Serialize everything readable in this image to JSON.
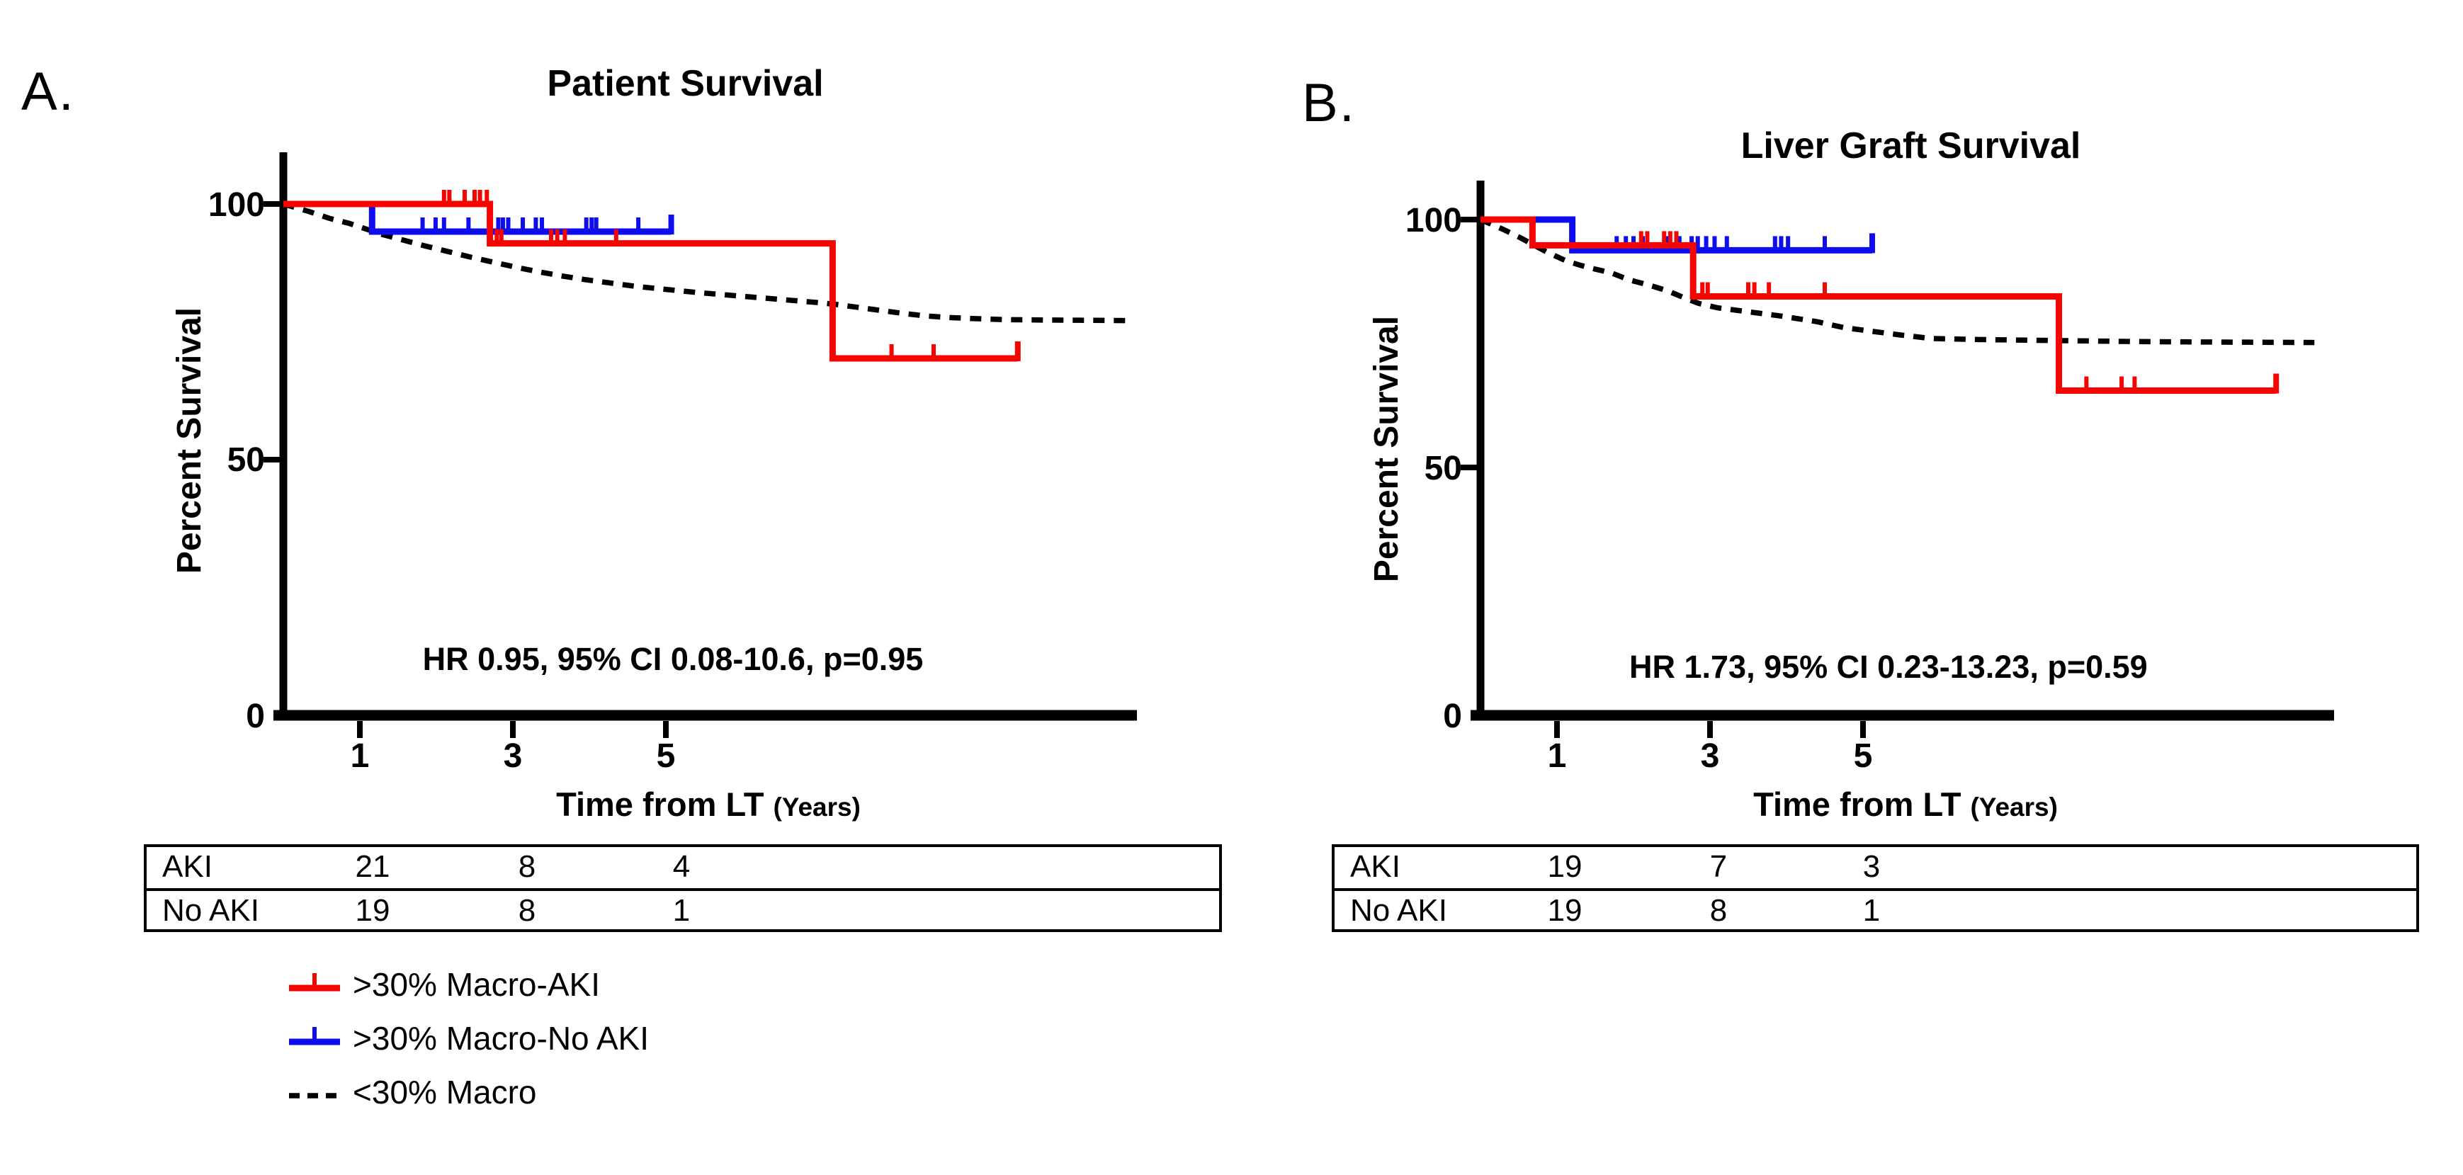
{
  "figure": {
    "background": "#ffffff"
  },
  "panel_labels": [
    "A.",
    "B."
  ],
  "colors": {
    "aki": "#f50400",
    "no_aki": "#0d0dee",
    "macro": "#000000"
  },
  "axis": {
    "y_label": "Percent Survival",
    "x_label_main": "Time from LT",
    "x_label_unit": "(Years)",
    "x_tick_labels": [
      "1",
      "3",
      "5"
    ],
    "y_tick_labels": [
      "0",
      "50",
      "100"
    ]
  },
  "legend": {
    "items": [
      {
        "label": ">30% Macro-AKI",
        "color": "#f50400",
        "style": "solid-tick"
      },
      {
        "label": ">30% Macro-No AKI",
        "color": "#0d0dee",
        "style": "solid-tick"
      },
      {
        "label": "<30% Macro",
        "color": "#000000",
        "style": "dashed"
      }
    ]
  },
  "chart_data": [
    {
      "type": "km_step",
      "title": "Patient Survival",
      "xlabel": "Time from LT (Years)",
      "ylabel": "Percent Survival",
      "annotation": "HR 0.95, 95% CI 0.08-10.6, p=0.95",
      "xlim": [
        0,
        11.2
      ],
      "ylim": [
        0,
        110
      ],
      "x_ticks": [
        1,
        3,
        5
      ],
      "y_ticks": [
        0,
        50,
        100
      ],
      "grid": false,
      "series": [
        {
          "name": "<30% Macro",
          "color_key": "macro",
          "style": "dashed",
          "points": [
            [
              0,
              100
            ],
            [
              0.34,
              98.5
            ],
            [
              0.6,
              97.2
            ],
            [
              0.86,
              96.2
            ],
            [
              1.14,
              94.8
            ],
            [
              1.3,
              94
            ],
            [
              1.55,
              93
            ],
            [
              1.85,
              91.8
            ],
            [
              2.15,
              90.7
            ],
            [
              2.45,
              89.6
            ],
            [
              2.75,
              88.6
            ],
            [
              3.05,
              87.6
            ],
            [
              3.35,
              86.7
            ],
            [
              3.65,
              85.9
            ],
            [
              3.95,
              85.2
            ],
            [
              4.25,
              84.6
            ],
            [
              4.6,
              83.9
            ],
            [
              5,
              83.3
            ],
            [
              5.4,
              82.7
            ],
            [
              5.8,
              82.2
            ],
            [
              6.2,
              81.7
            ],
            [
              6.6,
              81.2
            ],
            [
              7,
              80.7
            ],
            [
              7.2,
              80.4
            ],
            [
              7.5,
              79.8
            ],
            [
              7.8,
              79.2
            ],
            [
              8.1,
              78.6
            ],
            [
              8.4,
              78.1
            ],
            [
              8.7,
              77.8
            ],
            [
              9,
              77.6
            ],
            [
              9.4,
              77.4
            ],
            [
              10,
              77.3
            ],
            [
              11.05,
              77.2
            ]
          ],
          "censor_ticks": [],
          "terminal_tick": null
        },
        {
          "name": ">30% Macro-No AKI",
          "color_key": "no_aki",
          "style": "solid",
          "points": [
            [
              0,
              100
            ],
            [
              1.16,
              100
            ],
            [
              1.16,
              94.6
            ],
            [
              5.07,
              94.6
            ]
          ],
          "censor_ticks": [
            [
              1.82,
              94.6
            ],
            [
              1.99,
              94.6
            ],
            [
              2.1,
              94.6
            ],
            [
              2.42,
              94.6
            ],
            [
              2.7,
              94.6
            ],
            [
              2.81,
              94.6
            ],
            [
              2.87,
              94.6
            ],
            [
              2.94,
              94.6
            ],
            [
              3.13,
              94.6
            ],
            [
              3.3,
              94.6
            ],
            [
              3.38,
              94.6
            ],
            [
              3.96,
              94.6
            ],
            [
              4.03,
              94.6
            ],
            [
              4.09,
              94.6
            ],
            [
              4.64,
              94.6
            ]
          ],
          "terminal_tick": [
            5.07,
            94.6
          ]
        },
        {
          "name": ">30% Macro-AKI",
          "color_key": "aki",
          "style": "solid",
          "points": [
            [
              0,
              100
            ],
            [
              2.7,
              100
            ],
            [
              2.7,
              92.3
            ],
            [
              7.18,
              92.3
            ],
            [
              7.18,
              69.8
            ],
            [
              9.6,
              69.8
            ]
          ],
          "censor_ticks": [
            [
              2.1,
              100
            ],
            [
              2.17,
              100
            ],
            [
              2.37,
              100
            ],
            [
              2.5,
              100
            ],
            [
              2.57,
              100
            ],
            [
              2.66,
              100
            ],
            [
              2.79,
              92.3
            ],
            [
              2.85,
              92.3
            ],
            [
              3.5,
              92.3
            ],
            [
              3.58,
              92.3
            ],
            [
              3.68,
              92.3
            ],
            [
              4.35,
              92.3
            ],
            [
              7.95,
              69.8
            ],
            [
              8.5,
              69.8
            ]
          ],
          "terminal_tick": [
            9.6,
            69.8
          ]
        }
      ],
      "at_risk": {
        "time_points": [
          1,
          3,
          5
        ],
        "rows": [
          [
            "AKI",
            21,
            8,
            4
          ],
          [
            "No AKI",
            19,
            8,
            1
          ]
        ]
      }
    },
    {
      "type": "km_step",
      "title": "Liver Graft Survival",
      "xlabel": "Time from LT (Years)",
      "ylabel": "Percent Survival",
      "annotation": "HR 1.73, 95% CI 0.23-13.23, p=0.59",
      "xlim": [
        0,
        11.2
      ],
      "ylim": [
        0,
        110
      ],
      "x_ticks": [
        1,
        3,
        5
      ],
      "y_ticks": [
        0,
        50,
        100
      ],
      "grid": false,
      "series": [
        {
          "name": "<30% Macro",
          "color_key": "macro",
          "style": "dashed",
          "points": [
            [
              0,
              100
            ],
            [
              0.3,
              98
            ],
            [
              0.5,
              96.5
            ],
            [
              0.86,
              93.5
            ],
            [
              1.1,
              91.8
            ],
            [
              1.3,
              90.8
            ],
            [
              1.5,
              90
            ],
            [
              1.7,
              89.3
            ],
            [
              1.95,
              87.8
            ],
            [
              2.2,
              86.8
            ],
            [
              2.45,
              85.6
            ],
            [
              2.65,
              84.3
            ],
            [
              2.85,
              83.1
            ],
            [
              3.1,
              82.2
            ],
            [
              3.35,
              81.7
            ],
            [
              3.6,
              81.2
            ],
            [
              3.9,
              80.6
            ],
            [
              4.15,
              80
            ],
            [
              4.4,
              79.4
            ],
            [
              4.75,
              78.2
            ],
            [
              5.05,
              77.6
            ],
            [
              5.5,
              76.7
            ],
            [
              5.9,
              76
            ],
            [
              6.5,
              75.8
            ],
            [
              7.5,
              75.6
            ],
            [
              8.5,
              75.4
            ],
            [
              9.5,
              75.3
            ],
            [
              10.9,
              75.2
            ]
          ],
          "censor_ticks": [],
          "terminal_tick": null
        },
        {
          "name": ">30% Macro-No AKI",
          "color_key": "no_aki",
          "style": "solid",
          "points": [
            [
              0,
              100
            ],
            [
              1.2,
              100
            ],
            [
              1.2,
              93.8
            ],
            [
              5.12,
              93.8
            ]
          ],
          "censor_ticks": [
            [
              1.78,
              93.8
            ],
            [
              1.9,
              93.8
            ],
            [
              2.0,
              93.8
            ],
            [
              2.12,
              93.8
            ],
            [
              2.45,
              93.8
            ],
            [
              2.6,
              93.8
            ],
            [
              2.76,
              93.8
            ],
            [
              2.84,
              93.8
            ],
            [
              2.95,
              93.8
            ],
            [
              3.06,
              93.8
            ],
            [
              3.22,
              93.8
            ],
            [
              3.85,
              93.8
            ],
            [
              3.93,
              93.8
            ],
            [
              4.02,
              93.8
            ],
            [
              4.5,
              93.8
            ]
          ],
          "terminal_tick": [
            5.12,
            93.8
          ]
        },
        {
          "name": ">30% Macro-AKI",
          "color_key": "aki",
          "style": "solid",
          "points": [
            [
              0,
              100
            ],
            [
              0.68,
              100
            ],
            [
              0.68,
              94.8
            ],
            [
              2.78,
              94.8
            ],
            [
              2.78,
              84.5
            ],
            [
              7.56,
              84.5
            ],
            [
              7.56,
              65.5
            ],
            [
              10.4,
              65.5
            ]
          ],
          "censor_ticks": [
            [
              2.1,
              94.8
            ],
            [
              2.18,
              94.8
            ],
            [
              2.4,
              94.8
            ],
            [
              2.48,
              94.8
            ],
            [
              2.56,
              94.8
            ],
            [
              2.9,
              84.5
            ],
            [
              2.97,
              84.5
            ],
            [
              3.5,
              84.5
            ],
            [
              3.58,
              84.5
            ],
            [
              3.77,
              84.5
            ],
            [
              4.5,
              84.5
            ],
            [
              7.92,
              65.5
            ],
            [
              8.38,
              65.5
            ],
            [
              8.55,
              65.5
            ]
          ],
          "terminal_tick": [
            10.4,
            65.5
          ]
        }
      ],
      "at_risk": {
        "time_points": [
          1,
          3,
          5
        ],
        "rows": [
          [
            "AKI",
            19,
            7,
            3
          ],
          [
            "No AKI",
            19,
            8,
            1
          ]
        ]
      }
    }
  ]
}
